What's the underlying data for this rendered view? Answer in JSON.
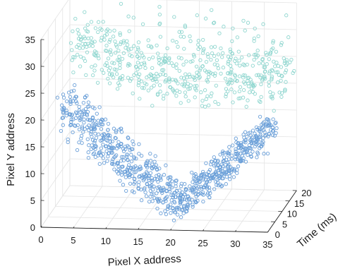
{
  "chart_data": {
    "type": "scatter",
    "title": "",
    "xlabel": "Pixel X address",
    "ylabel": "Pixel Y address",
    "zlabel": "Time (ms)",
    "xlim": [
      0,
      35
    ],
    "ylim": [
      0,
      35
    ],
    "zlim": [
      0,
      20
    ],
    "xticks": [
      "0",
      "5",
      "10",
      "15",
      "20",
      "25",
      "30",
      "35"
    ],
    "yticks": [
      "0",
      "5",
      "10",
      "15",
      "20",
      "25",
      "30",
      "35"
    ],
    "zticks": [
      "0",
      "5",
      "10",
      "15",
      "20"
    ],
    "grid": true,
    "legend": "none",
    "marker": "open-circle",
    "series": [
      {
        "color": "#6a9fd8",
        "time_range_ms": [
          0,
          10
        ],
        "points": [
          [
            3,
            21
          ],
          [
            4,
            19
          ],
          [
            5,
            18
          ],
          [
            6,
            17
          ],
          [
            7,
            16
          ],
          [
            8,
            15
          ],
          [
            9,
            14
          ],
          [
            10,
            13
          ],
          [
            11,
            12
          ],
          [
            12,
            11
          ],
          [
            13,
            10
          ],
          [
            14,
            9
          ],
          [
            15,
            8
          ],
          [
            16,
            7
          ],
          [
            17,
            6
          ],
          [
            18,
            5
          ],
          [
            19,
            4
          ],
          [
            20,
            3
          ],
          [
            21,
            4
          ],
          [
            22,
            5
          ],
          [
            23,
            6
          ],
          [
            24,
            7
          ],
          [
            25,
            8
          ],
          [
            26,
            9
          ],
          [
            27,
            10
          ],
          [
            28,
            11
          ],
          [
            29,
            12
          ],
          [
            30,
            13
          ],
          [
            31,
            14
          ],
          [
            32,
            15
          ],
          [
            33,
            16
          ],
          [
            34,
            17
          ]
        ]
      },
      {
        "color": "#8fd6cf",
        "time_range_ms": [
          10,
          20
        ],
        "points": [
          [
            3,
            28
          ],
          [
            5,
            27
          ],
          [
            7,
            26
          ],
          [
            9,
            25
          ],
          [
            11,
            24
          ],
          [
            13,
            24
          ],
          [
            15,
            23
          ],
          [
            17,
            23
          ],
          [
            19,
            23
          ],
          [
            21,
            23
          ],
          [
            23,
            23
          ],
          [
            25,
            23
          ],
          [
            27,
            23
          ],
          [
            29,
            23
          ],
          [
            31,
            23
          ],
          [
            33,
            22
          ],
          [
            35,
            22
          ]
        ]
      }
    ]
  }
}
